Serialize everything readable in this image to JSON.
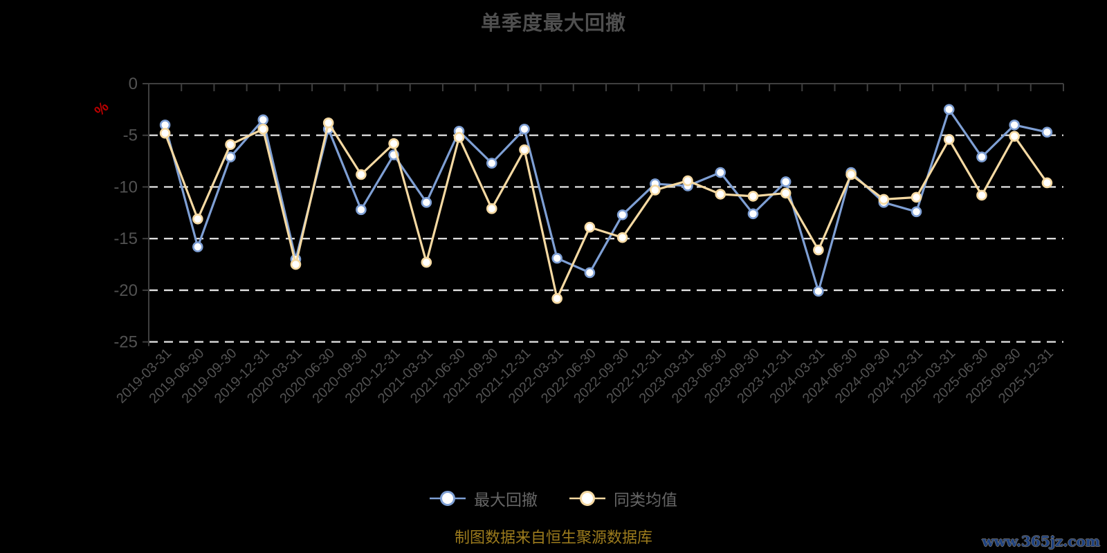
{
  "title": "单季度最大回撤",
  "y_axis": {
    "unit": "%",
    "ticks": [
      0,
      -5,
      -10,
      -15,
      -20,
      -25
    ]
  },
  "legend": {
    "items": [
      "最大回撤",
      "同类均值"
    ]
  },
  "footer": {
    "source": "制图数据来自恒生聚源数据库",
    "watermark": "www.365jz.com"
  },
  "colors": {
    "background": "#000000",
    "title": "#4f4f4f",
    "axis_label": "#525252",
    "axis_line": "#3f3f3f",
    "gridline": "#dcdcdc",
    "unit": "#bb0000",
    "legend_text": "#666666",
    "footer_text": "#9d7c1d",
    "watermark_text": "#1c4080",
    "marker_fill": "#ffffff"
  },
  "chart_data": {
    "type": "line",
    "title": "单季度最大回撤",
    "xlabel": "",
    "ylabel": "%",
    "ylim": [
      -25,
      0
    ],
    "grid": "horizontal-dashed-white",
    "legend_position": "bottom-center",
    "categories": [
      "2019-03-31",
      "2019-06-30",
      "2019-09-30",
      "2019-12-31",
      "2020-03-31",
      "2020-06-30",
      "2020-09-30",
      "2020-12-31",
      "2021-03-31",
      "2021-06-30",
      "2021-09-30",
      "2021-12-31",
      "2022-03-31",
      "2022-06-30",
      "2022-09-30",
      "2022-12-31",
      "2023-03-31",
      "2023-06-30",
      "2023-09-30",
      "2023-12-31",
      "2024-03-31",
      "2024-06-30",
      "2024-09-30",
      "2024-12-31",
      "2025-03-31",
      "2025-06-30",
      "2025-09-30",
      "2025-12-31"
    ],
    "series": [
      {
        "name": "最大回撤",
        "key": "max-drawdown",
        "color": "#7e9fd4",
        "values": [
          -4.0,
          -15.8,
          -7.1,
          -3.5,
          -17.0,
          -4.4,
          -12.2,
          -6.9,
          -11.5,
          -4.6,
          -7.7,
          -4.4,
          -16.9,
          -18.3,
          -12.7,
          -9.7,
          -9.9,
          -8.6,
          -12.6,
          -9.5,
          -20.1,
          -8.6,
          -11.5,
          -12.4,
          -2.5,
          -7.1,
          -4.0,
          -4.7
        ]
      },
      {
        "name": "同类均值",
        "key": "category-average",
        "color": "#f5d9a2",
        "values": [
          -4.8,
          -13.1,
          -5.9,
          -4.4,
          -17.5,
          -3.8,
          -8.8,
          -5.8,
          -17.3,
          -5.2,
          -12.1,
          -6.4,
          -20.8,
          -13.9,
          -14.9,
          -10.3,
          -9.4,
          -10.7,
          -10.9,
          -10.6,
          -16.1,
          -8.8,
          -11.2,
          -11.0,
          -5.4,
          -10.8,
          -5.1,
          -9.6
        ]
      }
    ]
  }
}
